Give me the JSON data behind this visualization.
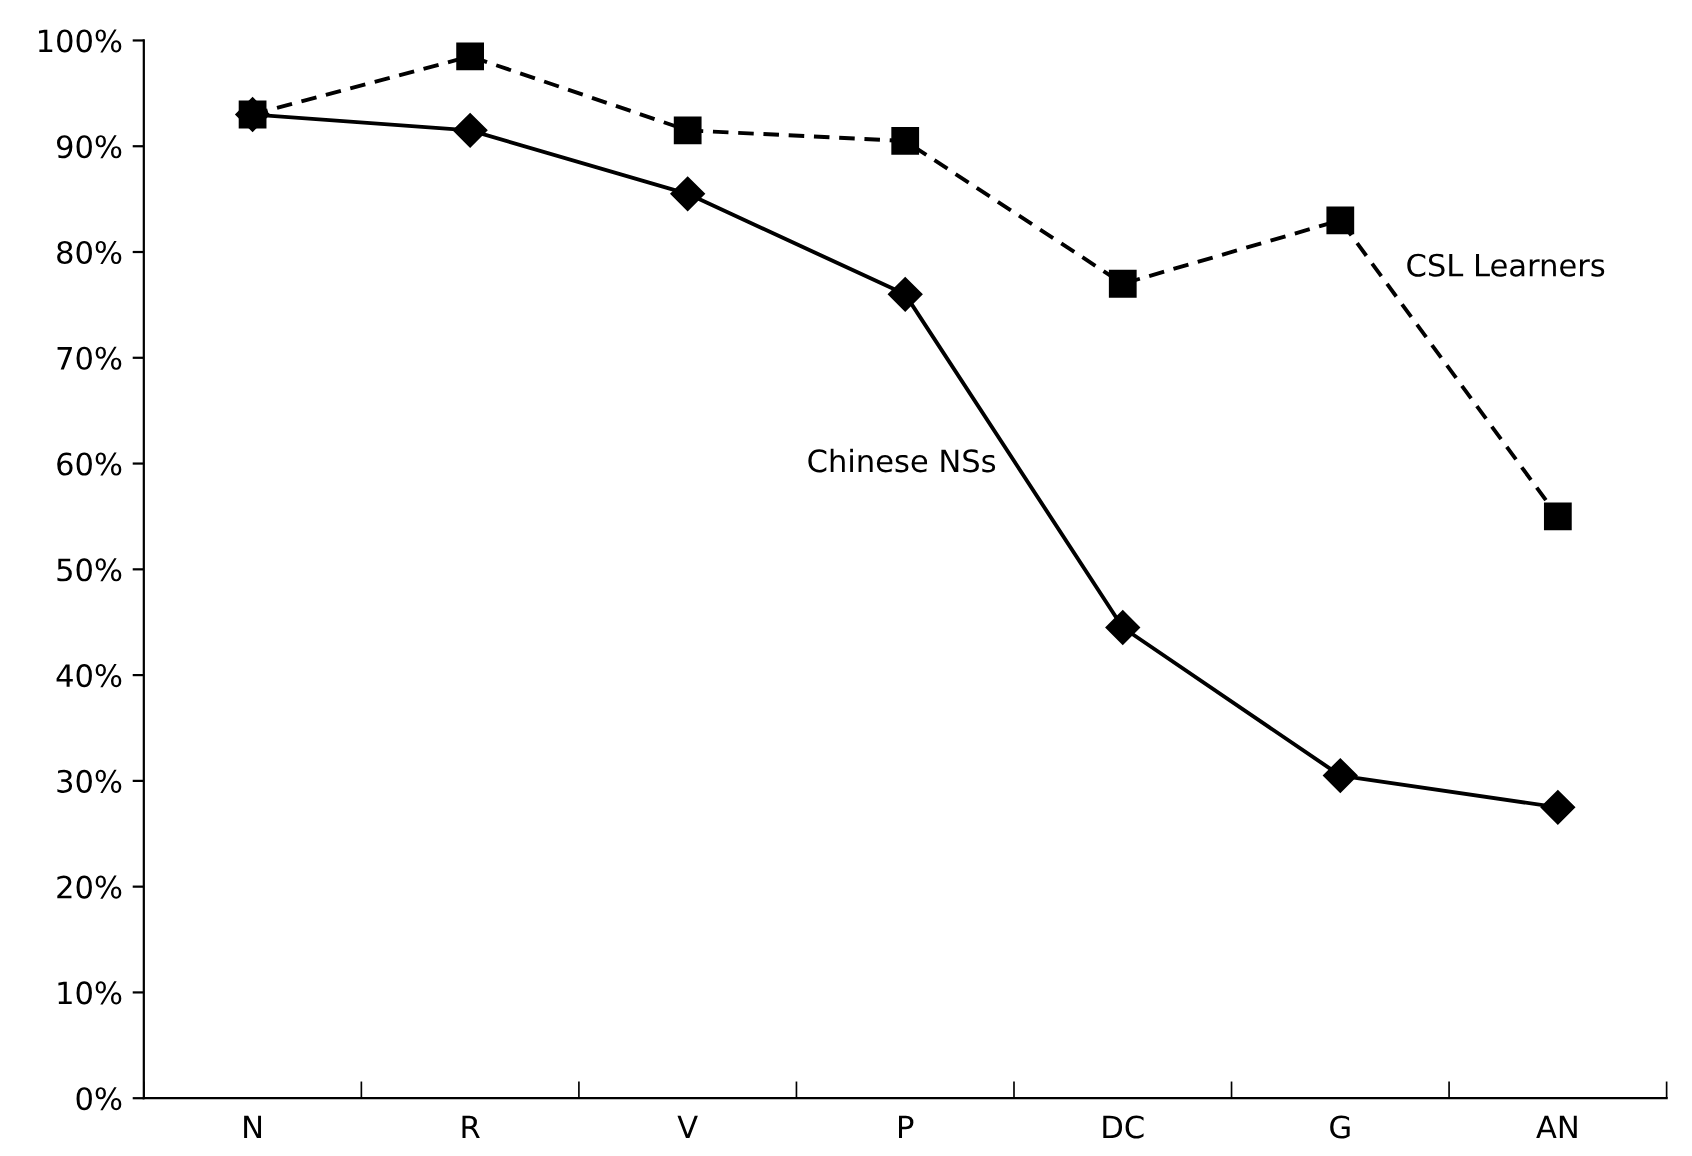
{
  "chart_data": {
    "type": "line",
    "categories": [
      "N",
      "R",
      "V",
      "P",
      "DC",
      "G",
      "AN"
    ],
    "series": [
      {
        "name": "CSL Learners",
        "color": "#000000",
        "marker": "square",
        "line_style": "dashed",
        "values": [
          93,
          98.5,
          91.5,
          90.5,
          77,
          83,
          55
        ]
      },
      {
        "name": "Chinese NSs",
        "color": "#000000",
        "marker": "diamond",
        "line_style": "solid",
        "values": [
          93,
          91.5,
          85.5,
          76,
          44.5,
          30.5,
          27.5
        ]
      }
    ],
    "ylim": [
      0,
      100
    ],
    "yticks": [
      {
        "value": 0,
        "label": "0%"
      },
      {
        "value": 10,
        "label": "10%"
      },
      {
        "value": 20,
        "label": "20%"
      },
      {
        "value": 30,
        "label": "30%"
      },
      {
        "value": 40,
        "label": "40%"
      },
      {
        "value": 50,
        "label": "50%"
      },
      {
        "value": 60,
        "label": "60%"
      },
      {
        "value": 70,
        "label": "70%"
      },
      {
        "value": 80,
        "label": "80%"
      },
      {
        "value": 90,
        "label": "90%"
      },
      {
        "value": 100,
        "label": "100%"
      }
    ],
    "grid": false,
    "legend": false
  }
}
